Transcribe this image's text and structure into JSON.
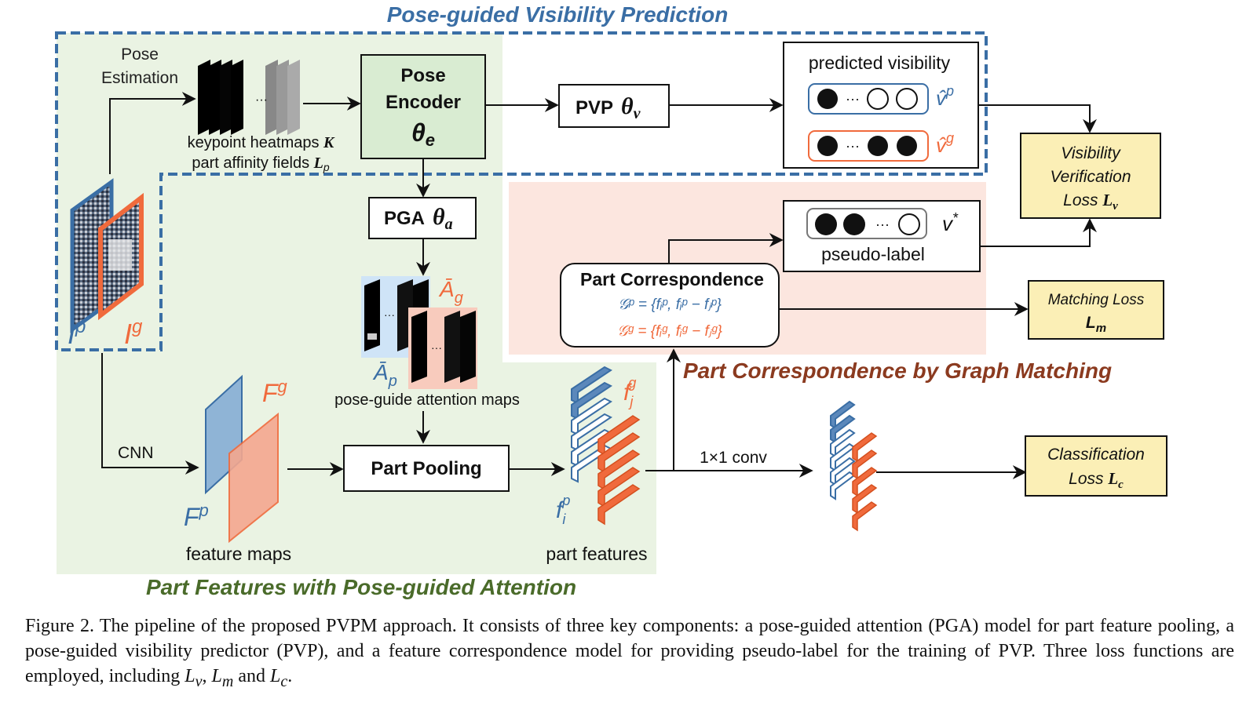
{
  "sections": {
    "visibility": "Pose-guided  Visibility Prediction",
    "correspondence": "Part Correspondence by Graph Matching",
    "features": "Part Features with Pose-guided  Attention"
  },
  "pose_estimation": [
    "Pose",
    "Estimation"
  ],
  "heatmaps": {
    "ellipsis": "···",
    "caption_line1": "keypoint heatmaps ",
    "caption_line1_sym": "K",
    "caption_line2": "part affinity fields ",
    "caption_line2_sym": "L",
    "caption_line2_sub": "p"
  },
  "pose_encoder": {
    "line1": "Pose",
    "line2": "Encoder",
    "sym": "θ",
    "sub": "e"
  },
  "pvp": {
    "label": "PVP",
    "sym": "θ",
    "sub": "v"
  },
  "pga": {
    "label": "PGA",
    "sym": "θ",
    "sub": "a"
  },
  "predicted_visibility": {
    "title": "predicted visibility",
    "ellipsis": "···",
    "vp": "v̂",
    "vp_sup": "p",
    "vg": "v̂",
    "vg_sup": "g"
  },
  "visibility_loss": {
    "line1": "Visibility",
    "line2": "Verification",
    "line3": "Loss ",
    "sym": "L",
    "sub": "v"
  },
  "pseudo_label": {
    "label": "pseudo-label",
    "ellipsis": "···",
    "sym": "v",
    "sup": "*"
  },
  "part_correspondence": {
    "title": "Part Correspondence",
    "gp": "𝒢ᵖ = {fᵢᵖ, fᵢᵖ − fⱼᵖ}",
    "gg": "𝒢ᵍ = {fᵢᵍ, fᵢᵍ − fⱼᵍ}"
  },
  "matching_loss": {
    "line1": "Matching Loss",
    "sym": "L",
    "sub": "m"
  },
  "classification_loss": {
    "line1": "Classification",
    "line2": "Loss ",
    "sym": "L",
    "sub": "c"
  },
  "attention": {
    "ag": "Ā",
    "ag_sub": "g",
    "ap": "Ā",
    "ap_sub": "p",
    "caption": "pose-guide attention maps"
  },
  "images": {
    "ip": "I",
    "ip_sup": "p",
    "ig": "I",
    "ig_sup": "g"
  },
  "cnn": "CNN",
  "feature_maps": {
    "fg": "F",
    "fg_sup": "g",
    "fp": "F",
    "fp_sup": "p",
    "caption": "feature maps"
  },
  "part_pooling": "Part Pooling",
  "part_features": {
    "fj": "f",
    "fj_sub": "j",
    "fj_sup": "g",
    "fi": "f",
    "fi_sub": "i",
    "fi_sup": "p",
    "caption": "part features"
  },
  "conv": "1×1 conv",
  "caption": {
    "text": "Figure 2. The pipeline of the proposed PVPM approach. It consists of three key components: a pose-guided attention (PGA) model for part feature pooling, a pose-guided visibility predictor (PVP), and a feature correspondence model for providing pseudo-label for the training of PVP. Three loss functions are employed, including ",
    "lv": "L",
    "lv_sub": "v",
    "sep1": ", ",
    "lm": "L",
    "lm_sub": "m",
    "sep2": " and ",
    "lc": "L",
    "lc_sub": "c",
    "end": "."
  },
  "colors": {
    "blue": "#3a6ea5",
    "orange": "#f06a3c",
    "green_bg": "#eaf3e3",
    "peach_bg": "#fce6df",
    "pose_encoder_fill": "#d9ecd2",
    "loss_fill": "#fbefb6",
    "dark_red": "#8b3a1f",
    "dark_green": "#4a6b2a"
  }
}
